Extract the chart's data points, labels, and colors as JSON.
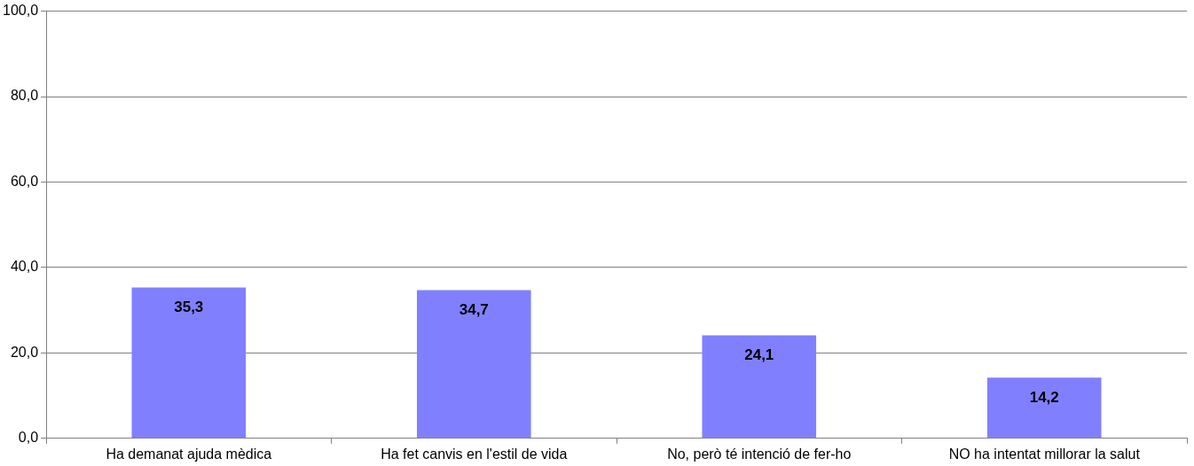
{
  "chart_data": {
    "type": "bar",
    "categories": [
      "Ha demanat ajuda mèdica",
      "Ha fet canvis en l'estil de vida",
      "No, però té intenció de fer-ho",
      "NO ha intentat millorar la salut"
    ],
    "values": [
      35.3,
      34.7,
      24.1,
      14.2
    ],
    "color": "#8080ff",
    "value_labels": [
      "35,3",
      "34,7",
      "24,1",
      "14,2"
    ],
    "ylim": [
      0,
      100
    ],
    "yticks": [
      {
        "value": 0,
        "label": "0,0"
      },
      {
        "value": 20,
        "label": "20,0"
      },
      {
        "value": 40,
        "label": "40,0"
      },
      {
        "value": 60,
        "label": "60,0"
      },
      {
        "value": 80,
        "label": "80,0"
      },
      {
        "value": 100,
        "label": "100,0"
      }
    ],
    "grid": "y"
  }
}
